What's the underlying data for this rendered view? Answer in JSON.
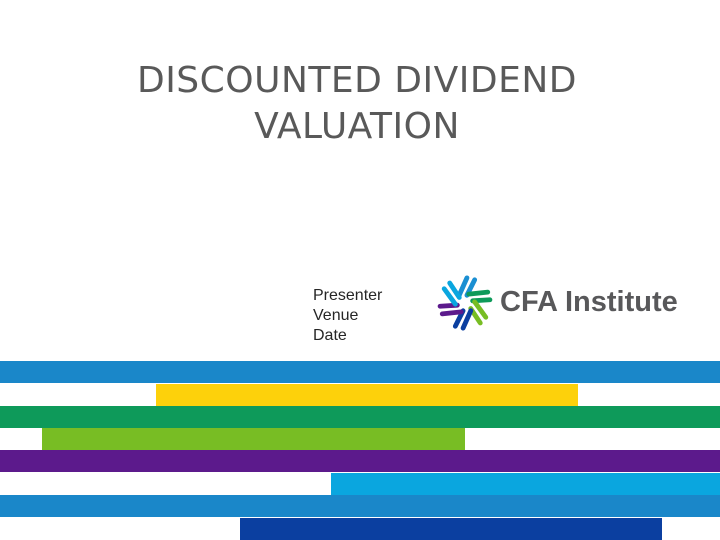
{
  "slide": {
    "title_line1": "DISCOUNTED DIVIDEND",
    "title_line2": "VALUATION",
    "presenter": "Presenter",
    "venue": "Venue",
    "date": "Date"
  },
  "logo": {
    "text": "CFA Institute",
    "mark_icon": "cfa-pinwheel-icon",
    "text_color": "#58585a"
  },
  "colors": {
    "title": "#595959",
    "stripe_blue": "#1a87c9",
    "stripe_yellow": "#fdd10b",
    "stripe_green": "#0e9a5a",
    "stripe_lime": "#78bd24",
    "stripe_purple": "#5c1a8c",
    "stripe_cyan": "#0aa6df",
    "stripe_navy": "#0b3fa0"
  }
}
